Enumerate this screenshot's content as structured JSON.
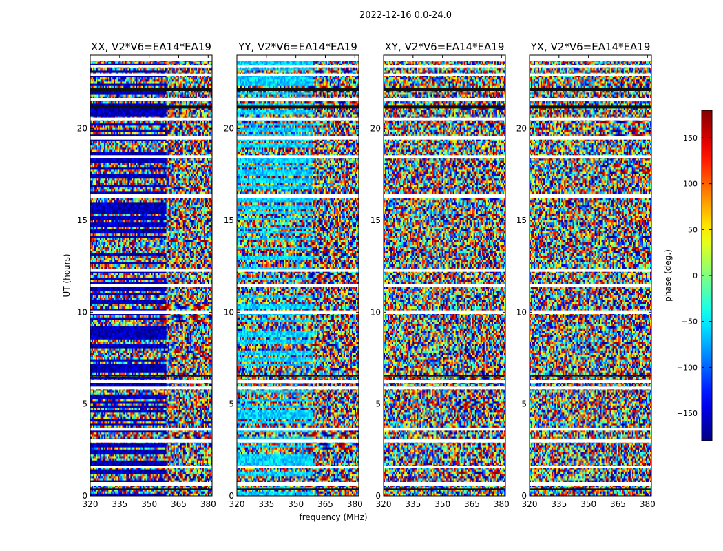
{
  "figure_title": "2022-12-16 0.0-24.0",
  "chart_data": {
    "type": "heatmap",
    "suptitle": "2022-12-16 0.0-24.0",
    "xlabel": "frequency (MHz)",
    "ylabel": "UT (hours)",
    "xlim": [
      320,
      382
    ],
    "ylim": [
      0,
      24
    ],
    "xticks": [
      320,
      335,
      350,
      365,
      380
    ],
    "yticks": [
      0,
      5,
      10,
      15,
      20
    ],
    "panels": [
      {
        "title": "XX, V2*V6=EA14*EA19",
        "pol": "XX",
        "base_phase": -160
      },
      {
        "title": "YY, V2*V6=EA14*EA19",
        "pol": "YY",
        "base_phase": -60
      },
      {
        "title": "XY, V2*V6=EA14*EA19",
        "pol": "XY",
        "base_phase": null
      },
      {
        "title": "YX, V2*V6=EA14*EA19",
        "pol": "YX",
        "base_phase": null
      }
    ],
    "colorbar": {
      "label": "phase (deg.)",
      "range": [
        -180,
        180
      ],
      "ticks": [
        -150,
        -100,
        -50,
        0,
        50,
        100,
        150
      ],
      "tick_labels": [
        "−150",
        "−100",
        "−50",
        "0",
        "50",
        "100",
        "150"
      ],
      "colormap": "jet"
    },
    "flagged_ut_bands": [
      [
        0.55,
        0.75
      ],
      [
        1.5,
        1.65
      ],
      [
        2.9,
        3.1
      ],
      [
        3.55,
        3.7
      ],
      [
        5.8,
        5.95
      ],
      [
        6.15,
        6.3
      ],
      [
        9.9,
        10.1
      ],
      [
        11.4,
        11.55
      ],
      [
        12.2,
        12.35
      ],
      [
        16.2,
        16.45
      ],
      [
        18.4,
        18.55
      ],
      [
        19.4,
        19.6
      ],
      [
        20.45,
        20.6
      ],
      [
        21.5,
        21.65
      ],
      [
        22.85,
        23.0
      ],
      [
        23.3,
        23.45
      ],
      [
        23.7,
        24.0
      ]
    ],
    "dark_ut_bands": [
      [
        0.3,
        0.4
      ],
      [
        6.5,
        6.6
      ],
      [
        21.1,
        21.25
      ],
      [
        22.05,
        22.2
      ]
    ]
  }
}
